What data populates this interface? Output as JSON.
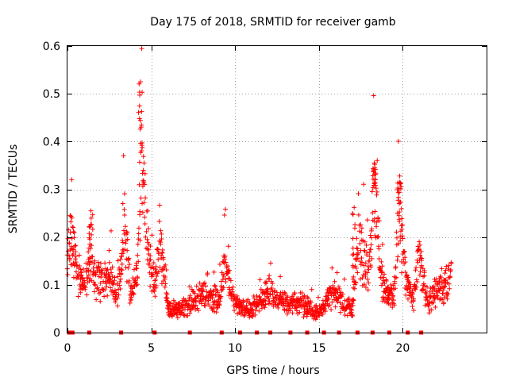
{
  "chart_data": {
    "type": "scatter",
    "title": "Day 175 of 2018, SRMTID for receiver gamb",
    "xlabel": "GPS time / hours",
    "ylabel": "SRMTID / TECUs",
    "xlim": [
      0,
      25
    ],
    "ylim": [
      0,
      0.6
    ],
    "xticks": [
      0,
      5,
      10,
      15,
      20
    ],
    "yticks": [
      0,
      0.1,
      0.2,
      0.3,
      0.4,
      0.5,
      0.6
    ],
    "grid": true,
    "marker": "+",
    "color": "#ff0000",
    "zero_marker_times": [
      0.1,
      0.3,
      1.3,
      3.2,
      5.2,
      7.3,
      9.2,
      10.3,
      11.3,
      12.1,
      13.3,
      14.3,
      15.3,
      16.2,
      17.3,
      18.2,
      19.2,
      20.3,
      21.1
    ],
    "envelope_series": {
      "name": "SRMTID",
      "x": [
        0,
        0.2,
        0.6,
        1.0,
        1.4,
        2.0,
        2.5,
        3.0,
        3.4,
        3.8,
        4.2,
        4.4,
        4.6,
        4.9,
        5.2,
        5.5,
        6.0,
        7.0,
        7.5,
        8.0,
        9.0,
        9.4,
        10.0,
        11.0,
        12.0,
        13.0,
        14.0,
        14.5,
        15.0,
        15.5,
        16.0,
        16.5,
        17.0,
        17.4,
        18.0,
        18.3,
        18.7,
        19.0,
        19.5,
        19.8,
        20.2,
        20.6,
        21.0,
        21.5,
        22.0,
        22.5,
        22.9
      ],
      "y": [
        0.16,
        0.22,
        0.12,
        0.1,
        0.15,
        0.1,
        0.12,
        0.08,
        0.22,
        0.08,
        0.14,
        0.4,
        0.3,
        0.14,
        0.1,
        0.2,
        0.05,
        0.05,
        0.07,
        0.08,
        0.07,
        0.14,
        0.06,
        0.05,
        0.08,
        0.06,
        0.06,
        0.05,
        0.04,
        0.07,
        0.08,
        0.06,
        0.05,
        0.2,
        0.12,
        0.3,
        0.12,
        0.08,
        0.08,
        0.26,
        0.12,
        0.06,
        0.16,
        0.06,
        0.09,
        0.1,
        0.12
      ],
      "peaks": [
        {
          "x": 4.35,
          "y": 0.525
        },
        {
          "x": 18.3,
          "y": 0.355
        },
        {
          "x": 19.8,
          "y": 0.315
        },
        {
          "x": 1.4,
          "y": 0.255
        },
        {
          "x": 17.1,
          "y": 0.262
        }
      ]
    }
  }
}
